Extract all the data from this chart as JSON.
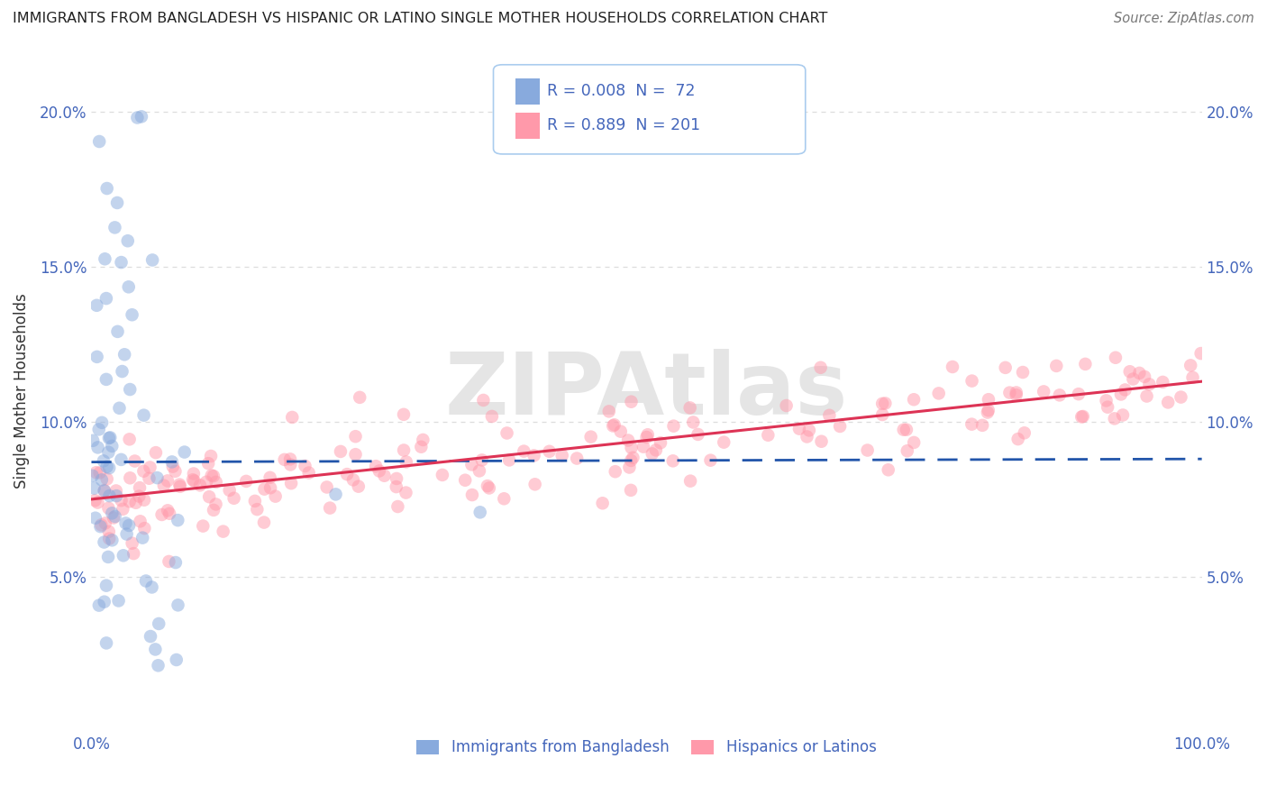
{
  "title": "IMMIGRANTS FROM BANGLADESH VS HISPANIC OR LATINO SINGLE MOTHER HOUSEHOLDS CORRELATION CHART",
  "source": "Source: ZipAtlas.com",
  "ylabel": "Single Mother Households",
  "xlabel": "",
  "watermark": "ZIPAtlas",
  "xlim": [
    0.0,
    1.0
  ],
  "ylim": [
    0.0,
    0.22
  ],
  "yticks": [
    0.05,
    0.1,
    0.15,
    0.2
  ],
  "ytick_labels": [
    "5.0%",
    "10.0%",
    "15.0%",
    "20.0%"
  ],
  "blue_R": 0.008,
  "blue_N": 72,
  "pink_R": 0.889,
  "pink_N": 201,
  "blue_color": "#88AADD",
  "pink_color": "#FF99AA",
  "blue_line_color": "#2255AA",
  "pink_line_color": "#DD3355",
  "legend_label_blue": "Immigrants from Bangladesh",
  "legend_label_pink": "Hispanics or Latinos",
  "title_color": "#222222",
  "axis_color": "#4466BB",
  "source_color": "#666666",
  "background_color": "#FFFFFF",
  "grid_color": "#DDDDDD",
  "blue_line_intercept": 0.087,
  "blue_line_slope": 0.001,
  "pink_line_intercept": 0.075,
  "pink_line_slope": 0.038
}
